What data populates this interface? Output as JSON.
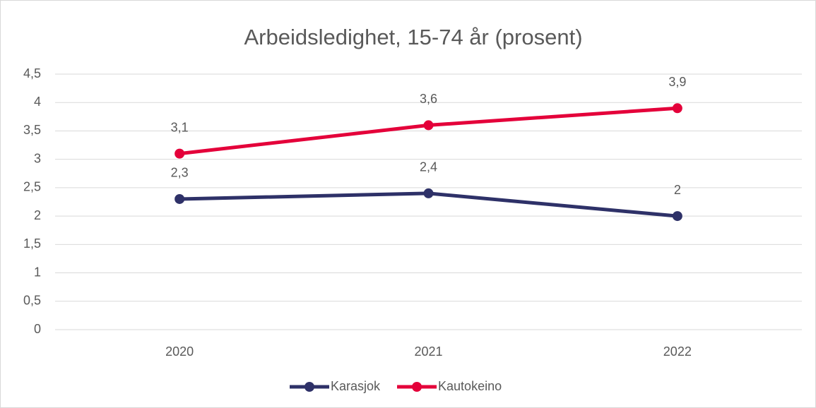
{
  "chart_data": {
    "type": "line",
    "title": "Arbeidsledighet, 15-74 år (prosent)",
    "categories": [
      "2020",
      "2021",
      "2022"
    ],
    "series": [
      {
        "name": "Karasjok",
        "color": "#2e3168",
        "values": [
          2.3,
          2.4,
          2
        ],
        "value_labels": [
          "2,3",
          "2,4",
          "2"
        ]
      },
      {
        "name": "Kautokeino",
        "color": "#e4003a",
        "values": [
          3.1,
          3.6,
          3.9
        ],
        "value_labels": [
          "3,1",
          "3,6",
          "3,9"
        ]
      }
    ],
    "ylim": [
      0,
      4.5
    ],
    "yticks": [
      0,
      {
        "value": 0.5,
        "label": "0,5"
      },
      1,
      {
        "value": 1.5,
        "label": "1,5"
      },
      2,
      {
        "value": 2.5,
        "label": "2,5"
      },
      3,
      {
        "value": 3.5,
        "label": "3,5"
      },
      4,
      {
        "value": 4.5,
        "label": "4,5"
      }
    ],
    "grid": true,
    "legend": "bottom"
  }
}
